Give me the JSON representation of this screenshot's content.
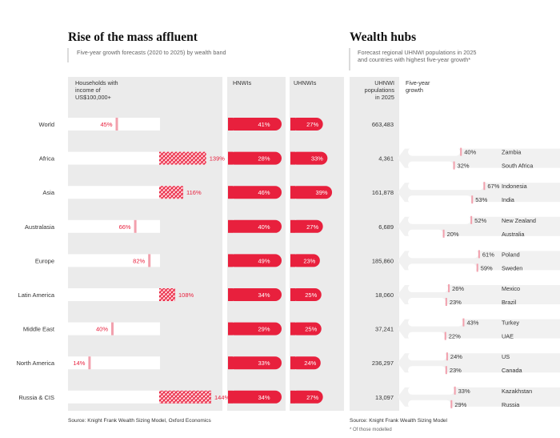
{
  "colors": {
    "accent": "#e8203d",
    "grey": "#ececec",
    "greyDark": "#e1e1e1",
    "text": "#333333",
    "muted": "#666666"
  },
  "chart_data": [
    {
      "type": "bar",
      "title": "Rise of the mass affluent",
      "subtitle": "Five-year growth forecasts (2020 to 2025) by wealth band",
      "categories": [
        "World",
        "Africa",
        "Asia",
        "Australasia",
        "Europe",
        "Latin America",
        "Middle East",
        "North America",
        "Russia & CIS"
      ],
      "series": [
        {
          "name": "Households with income of US$100,000+",
          "values": [
            45,
            139,
            116,
            66,
            82,
            108,
            40,
            14,
            144
          ]
        },
        {
          "name": "HNWIs",
          "values": [
            41,
            28,
            46,
            40,
            49,
            34,
            29,
            33,
            34
          ]
        },
        {
          "name": "UHNWIs",
          "values": [
            27,
            33,
            39,
            27,
            23,
            25,
            25,
            24,
            27
          ]
        }
      ],
      "headers": {
        "households": "Households with income of US$100,000+",
        "hnwis": "HNWIs",
        "uhnwis": "UHNWIs"
      },
      "source": "Source: Knight Frank Wealth Sizing Model, Oxford Economics"
    },
    {
      "type": "bar",
      "title": "Wealth hubs",
      "subtitle": "Forecast regional UHNWI populations in 2025 and countries with highest five-year growth*",
      "headers": {
        "population": "UHNWI populations in 2025",
        "growth": "Five-year growth"
      },
      "populations": [
        "663,483",
        "4,361",
        "161,878",
        "6,689",
        "185,860",
        "18,060",
        "37,241",
        "236,297",
        "13,097"
      ],
      "countries": [
        [],
        [
          {
            "name": "Zambia",
            "value": 40
          },
          {
            "name": "South Africa",
            "value": 32
          }
        ],
        [
          {
            "name": "Indonesia",
            "value": 67
          },
          {
            "name": "India",
            "value": 53
          }
        ],
        [
          {
            "name": "New Zealand",
            "value": 52
          },
          {
            "name": "Australia",
            "value": 20
          }
        ],
        [
          {
            "name": "Poland",
            "value": 61
          },
          {
            "name": "Sweden",
            "value": 59
          }
        ],
        [
          {
            "name": "Mexico",
            "value": 26
          },
          {
            "name": "Brazil",
            "value": 23
          }
        ],
        [
          {
            "name": "Turkey",
            "value": 43
          },
          {
            "name": "UAE",
            "value": 22
          }
        ],
        [
          {
            "name": "US",
            "value": 24
          },
          {
            "name": "Canada",
            "value": 23
          }
        ],
        [
          {
            "name": "Kazakhstan",
            "value": 33
          },
          {
            "name": "Russia",
            "value": 29
          }
        ]
      ],
      "source": "Source: Knight Frank Wealth Sizing Model",
      "footnote": "* Of those modelled"
    }
  ]
}
